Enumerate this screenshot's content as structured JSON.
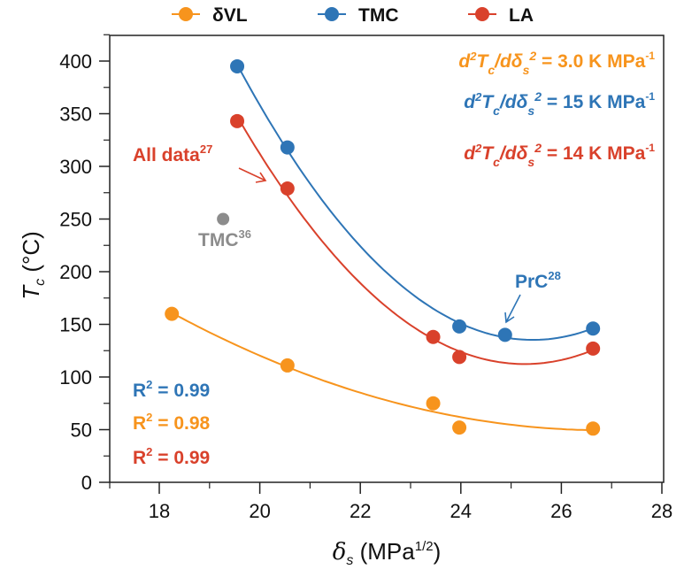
{
  "chart_data": {
    "type": "scatter",
    "xlabel": "δs (MPa1/2)",
    "xlabel_main": "δ",
    "xlabel_sub": "s",
    "xlabel_unit": " (MPa",
    "xlabel_sup": "1/2",
    "xlabel_close": ")",
    "ylabel": "Tc (°C)",
    "ylabel_main": "T",
    "ylabel_sub": "c",
    "ylabel_unit": " (°C)",
    "xlim": [
      17,
      28
    ],
    "ylim": [
      0,
      420
    ],
    "xticks": [
      "18",
      "20",
      "22",
      "24",
      "26",
      "28"
    ],
    "yticks": [
      "0",
      "50",
      "100",
      "150",
      "200",
      "250",
      "300",
      "350",
      "400"
    ],
    "grid": false,
    "legend_position": "top",
    "fit": "quadratic",
    "series": [
      {
        "name": "δVL",
        "color": "#f7941d",
        "x": [
          18.25,
          20.55,
          23.45,
          23.97,
          26.63
        ],
        "y": [
          160,
          111,
          75,
          52,
          51
        ]
      },
      {
        "name": "TMC",
        "color": "#2e75b6",
        "x": [
          19.55,
          20.55,
          23.97,
          24.88,
          26.63
        ],
        "y": [
          395,
          318,
          148,
          140,
          146
        ]
      },
      {
        "name": "LA",
        "color": "#d9412b",
        "x": [
          19.55,
          20.55,
          23.45,
          23.97,
          26.63
        ],
        "y": [
          343,
          279,
          138,
          119,
          127
        ]
      }
    ],
    "extra_point": {
      "label": "TMC",
      "ref": "36",
      "color": "#8c8c8c",
      "x": 19.27,
      "y": 250
    },
    "annotations": {
      "all_data": {
        "text": "All data",
        "ref": "27",
        "color": "#d9412b"
      },
      "prc": {
        "text": "PrC",
        "ref": "28",
        "color": "#2e75b6"
      },
      "curvature": [
        {
          "prefix": "d",
          "sup1": "2",
          "T": "T",
          "sub_c": "c",
          "mid": "/dδ",
          "sub_s": "s",
          "sup2": "2",
          "value": " = 3.0 K MPa",
          "exp": "-1",
          "color": "#f7941d"
        },
        {
          "prefix": "d",
          "sup1": "2",
          "T": "T",
          "sub_c": "c",
          "mid": "/dδ",
          "sub_s": "s",
          "sup2": "2",
          "value": " = 15 K MPa",
          "exp": "-1",
          "color": "#2e75b6"
        },
        {
          "prefix": "d",
          "sup1": "2",
          "T": "T",
          "sub_c": "c",
          "mid": "/dδ",
          "sub_s": "s",
          "sup2": "2",
          "value": " = 14 K MPa",
          "exp": "-1",
          "color": "#d9412b"
        }
      ],
      "r2": [
        {
          "label": "R",
          "sup": "2",
          "value": " = 0.99",
          "color": "#2e75b6"
        },
        {
          "label": "R",
          "sup": "2",
          "value": " = 0.98",
          "color": "#f7941d"
        },
        {
          "label": "R",
          "sup": "2",
          "value": " = 0.99",
          "color": "#d9412b"
        }
      ]
    }
  }
}
